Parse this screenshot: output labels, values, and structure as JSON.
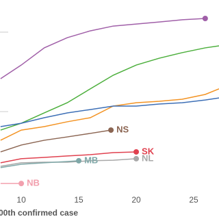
{
  "chart_data": {
    "type": "line",
    "x_label": "00th confirmed case",
    "xlim": [
      8.15,
      27.2
    ],
    "xticks": [
      10,
      15,
      20,
      25
    ],
    "ylim": [
      0,
      100
    ],
    "yticks": [
      39.6,
      82.6
    ],
    "grid": true,
    "series": [
      {
        "color": "#a05fa8",
        "x": [
          8.2,
          10,
          12,
          14,
          16,
          18,
          20,
          22,
          24,
          26
        ],
        "values": [
          57.4,
          64.8,
          74.1,
          79.6,
          83.3,
          85.9,
          87,
          88.1,
          89.3,
          90
        ],
        "end_dot": true
      },
      {
        "color": "#4caf3c",
        "x": [
          8.2,
          10,
          12,
          14,
          16,
          18,
          20,
          22,
          24,
          26,
          27.2
        ],
        "values": [
          29.6,
          33.3,
          38.9,
          44.4,
          51.9,
          59.3,
          64.8,
          68.5,
          71.5,
          74.1,
          75.2
        ]
      },
      {
        "color": "#f39323",
        "x": [
          8.2,
          10,
          12,
          14,
          16,
          18,
          20,
          22,
          24,
          26,
          27.2
        ],
        "values": [
          24.1,
          29.6,
          31.5,
          34.1,
          36.3,
          42.6,
          44.4,
          45.2,
          46.3,
          48.9,
          51.9
        ]
      },
      {
        "color": "#3d6fb6",
        "x": [
          8.2,
          10,
          12,
          14,
          16,
          18,
          20,
          22,
          24,
          26,
          27.2
        ],
        "values": [
          31.5,
          33.3,
          36.3,
          38.9,
          40.7,
          42.6,
          42.6,
          43.7,
          44.4,
          45.9,
          47
        ]
      },
      {
        "name": "NS",
        "color": "#8b6552",
        "x": [
          8.2,
          10,
          12,
          14,
          16,
          17.8
        ],
        "values": [
          17.8,
          21.5,
          24.1,
          25.9,
          27.8,
          29.6
        ],
        "end_dot": true
      },
      {
        "name": "SK",
        "color": "#e0414f",
        "x": [
          8.2,
          10,
          12,
          14,
          16,
          18,
          20
        ],
        "values": [
          11.9,
          14.1,
          14.8,
          15.6,
          16.3,
          17.4,
          17.8
        ],
        "end_dot": true
      },
      {
        "name": "NL",
        "color": "#a8a8a8",
        "x": [
          8.2,
          10,
          12,
          14,
          16,
          18,
          20
        ],
        "values": [
          10,
          11.9,
          12.2,
          12.2,
          13,
          13.3,
          14.1
        ],
        "end_dot": true
      },
      {
        "name": "MB",
        "color": "#7fa8a8",
        "x": [
          8.2,
          10,
          12,
          14,
          15
        ],
        "values": [
          9.3,
          11.1,
          11.9,
          12.6,
          13
        ],
        "end_dot": true
      },
      {
        "name": "NB",
        "color": "#f2a0ae",
        "x": [
          8.2,
          10
        ],
        "values": [
          0.7,
          0.7
        ],
        "end_dot": true
      }
    ]
  }
}
